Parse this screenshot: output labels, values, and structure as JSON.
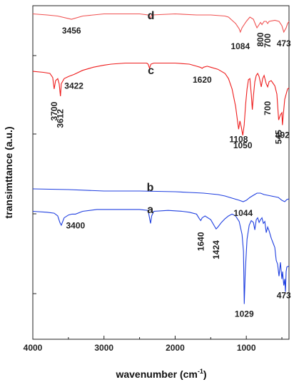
{
  "chart_data": {
    "type": "line",
    "xlabel": "wavenumber (cm",
    "xlabel_sup": "-1",
    "xlabel_tail": ")",
    "ylabel": "transimttance (a.u.)",
    "xlim": [
      4000,
      400
    ],
    "x_reversed": true,
    "x_ticks": [
      "4000",
      "3000",
      "2000",
      "1000"
    ],
    "grid": false,
    "y_tick_labels": false,
    "series": [
      {
        "name": "d",
        "color": "#f05050",
        "points": [
          [
            4000,
            17
          ],
          [
            3800,
            16
          ],
          [
            3650,
            15
          ],
          [
            3456,
            12
          ],
          [
            3300,
            15
          ],
          [
            3000,
            17
          ],
          [
            2900,
            17
          ],
          [
            2500,
            17
          ],
          [
            2380,
            16
          ],
          [
            2350,
            13
          ],
          [
            2330,
            16
          ],
          [
            2000,
            17
          ],
          [
            1700,
            16
          ],
          [
            1500,
            16
          ],
          [
            1300,
            15
          ],
          [
            1250,
            14
          ],
          [
            1200,
            11
          ],
          [
            1150,
            8
          ],
          [
            1100,
            3
          ],
          [
            1084,
            0
          ],
          [
            1060,
            4
          ],
          [
            1000,
            10
          ],
          [
            950,
            14
          ],
          [
            900,
            12
          ],
          [
            870,
            7
          ],
          [
            850,
            4
          ],
          [
            820,
            7
          ],
          [
            800,
            9
          ],
          [
            780,
            7
          ],
          [
            750,
            10
          ],
          [
            720,
            10
          ],
          [
            700,
            8
          ],
          [
            680,
            10
          ],
          [
            600,
            11
          ],
          [
            540,
            10
          ],
          [
            500,
            6
          ],
          [
            473,
            0
          ],
          [
            440,
            4
          ],
          [
            420,
            8
          ],
          [
            400,
            10
          ]
        ],
        "labels": [
          {
            "text": "3456",
            "x": 3456,
            "dy": 20
          },
          {
            "text": "1084",
            "x": 1084,
            "dy": 24
          },
          {
            "text": "800",
            "x": 800,
            "dy": 14,
            "rotate": true
          },
          {
            "text": "700",
            "x": 700,
            "dy": 14,
            "rotate": true
          },
          {
            "text": "473",
            "x": 473,
            "dy": 20
          }
        ]
      },
      {
        "name": "c",
        "color": "#ee1c1c",
        "points": [
          [
            4000,
            62
          ],
          [
            3850,
            61
          ],
          [
            3760,
            60
          ],
          [
            3720,
            56
          ],
          [
            3700,
            45
          ],
          [
            3680,
            53
          ],
          [
            3650,
            55
          ],
          [
            3630,
            50
          ],
          [
            3612,
            38
          ],
          [
            3600,
            50
          ],
          [
            3560,
            55
          ],
          [
            3500,
            57
          ],
          [
            3422,
            59
          ],
          [
            3300,
            63
          ],
          [
            3150,
            66
          ],
          [
            3000,
            68
          ],
          [
            2900,
            69
          ],
          [
            2700,
            70
          ],
          [
            2400,
            70
          ],
          [
            2380,
            69
          ],
          [
            2360,
            65
          ],
          [
            2340,
            69
          ],
          [
            2300,
            70
          ],
          [
            2000,
            70
          ],
          [
            1800,
            69
          ],
          [
            1700,
            67
          ],
          [
            1650,
            66
          ],
          [
            1620,
            65
          ],
          [
            1600,
            66
          ],
          [
            1550,
            67
          ],
          [
            1500,
            66
          ],
          [
            1400,
            64
          ],
          [
            1300,
            60
          ],
          [
            1250,
            55
          ],
          [
            1200,
            45
          ],
          [
            1150,
            28
          ],
          [
            1120,
            12
          ],
          [
            1108,
            6
          ],
          [
            1090,
            14
          ],
          [
            1070,
            8
          ],
          [
            1050,
            0
          ],
          [
            1030,
            10
          ],
          [
            1010,
            30
          ],
          [
            990,
            45
          ],
          [
            970,
            54
          ],
          [
            950,
            55
          ],
          [
            930,
            40
          ],
          [
            915,
            25
          ],
          [
            900,
            38
          ],
          [
            880,
            52
          ],
          [
            860,
            58
          ],
          [
            840,
            60
          ],
          [
            820,
            57
          ],
          [
            790,
            47
          ],
          [
            770,
            55
          ],
          [
            750,
            58
          ],
          [
            720,
            50
          ],
          [
            700,
            47
          ],
          [
            680,
            52
          ],
          [
            650,
            53
          ],
          [
            600,
            48
          ],
          [
            570,
            40
          ],
          [
            545,
            15
          ],
          [
            520,
            20
          ],
          [
            500,
            22
          ],
          [
            492,
            10
          ],
          [
            480,
            20
          ],
          [
            460,
            35
          ],
          [
            440,
            40
          ],
          [
            420,
            45
          ],
          [
            400,
            46
          ]
        ],
        "labels": [
          {
            "text": "3700",
            "x": 3700,
            "dy": 18,
            "rotate": true,
            "anchor": "end"
          },
          {
            "text": "3612",
            "x": 3612,
            "dy": 18,
            "rotate": true,
            "anchor": "end"
          },
          {
            "text": "3422",
            "x": 3422,
            "dy": 20
          },
          {
            "text": "1620",
            "x": 1620,
            "dy": 20
          },
          {
            "text": "1108",
            "x": 1108,
            "dy": 18
          },
          {
            "text": "700",
            "x": 700,
            "dy": 20,
            "rotate": true,
            "anchor": "end"
          },
          {
            "text": "1050",
            "x": 1050,
            "dy": 18
          },
          {
            "text": "545",
            "x": 545,
            "dy": 14,
            "rotate": true,
            "anchor": "end"
          },
          {
            "text": "492",
            "x": 492,
            "dy": 18
          }
        ]
      },
      {
        "name": "b",
        "color": "#1f3fe0",
        "points": [
          [
            4000,
            0
          ],
          [
            3500,
            -1
          ],
          [
            3000,
            -3
          ],
          [
            2500,
            -3
          ],
          [
            2000,
            -4
          ],
          [
            1800,
            -5
          ],
          [
            1600,
            -6
          ],
          [
            1400,
            -8
          ],
          [
            1300,
            -10
          ],
          [
            1200,
            -13
          ],
          [
            1100,
            -16
          ],
          [
            1044,
            -18
          ],
          [
            1000,
            -16
          ],
          [
            950,
            -12
          ],
          [
            900,
            -9
          ],
          [
            850,
            -6
          ],
          [
            800,
            -6
          ],
          [
            750,
            -8
          ],
          [
            700,
            -9
          ],
          [
            650,
            -10
          ],
          [
            600,
            -11
          ],
          [
            550,
            -12
          ],
          [
            500,
            -16
          ],
          [
            460,
            -18
          ],
          [
            430,
            -15
          ],
          [
            400,
            -14
          ]
        ],
        "labels": [
          {
            "text": "1044",
            "x": 1044,
            "dy": 20
          }
        ]
      },
      {
        "name": "a",
        "color": "#1f3fe0",
        "points": [
          [
            4000,
            45
          ],
          [
            3800,
            44
          ],
          [
            3700,
            43
          ],
          [
            3650,
            40
          ],
          [
            3620,
            33
          ],
          [
            3600,
            30
          ],
          [
            3560,
            38
          ],
          [
            3500,
            41
          ],
          [
            3450,
            42
          ],
          [
            3400,
            42
          ],
          [
            3300,
            45
          ],
          [
            3100,
            47
          ],
          [
            2950,
            47
          ],
          [
            2800,
            47
          ],
          [
            2500,
            47
          ],
          [
            2380,
            46
          ],
          [
            2365,
            40
          ],
          [
            2345,
            32
          ],
          [
            2330,
            40
          ],
          [
            2300,
            45
          ],
          [
            2100,
            46
          ],
          [
            1900,
            45
          ],
          [
            1800,
            44
          ],
          [
            1700,
            42
          ],
          [
            1660,
            37
          ],
          [
            1640,
            35
          ],
          [
            1620,
            38
          ],
          [
            1580,
            40
          ],
          [
            1500,
            36
          ],
          [
            1440,
            28
          ],
          [
            1424,
            26
          ],
          [
            1400,
            28
          ],
          [
            1350,
            33
          ],
          [
            1300,
            37
          ],
          [
            1250,
            40
          ],
          [
            1200,
            42
          ],
          [
            1150,
            40
          ],
          [
            1100,
            34
          ],
          [
            1060,
            20
          ],
          [
            1040,
            2
          ],
          [
            1029,
            -55
          ],
          [
            1015,
            -20
          ],
          [
            990,
            15
          ],
          [
            960,
            30
          ],
          [
            930,
            35
          ],
          [
            900,
            33
          ],
          [
            880,
            25
          ],
          [
            860,
            36
          ],
          [
            840,
            38
          ],
          [
            820,
            33
          ],
          [
            800,
            36
          ],
          [
            780,
            38
          ],
          [
            760,
            32
          ],
          [
            740,
            34
          ],
          [
            720,
            22
          ],
          [
            700,
            28
          ],
          [
            680,
            24
          ],
          [
            650,
            16
          ],
          [
            620,
            10
          ],
          [
            600,
            6
          ],
          [
            580,
            -8
          ],
          [
            560,
            -12
          ],
          [
            540,
            -25
          ],
          [
            520,
            -10
          ],
          [
            500,
            -28
          ],
          [
            490,
            -20
          ],
          [
            473,
            -35
          ],
          [
            460,
            -28
          ],
          [
            450,
            -42
          ],
          [
            440,
            -20
          ],
          [
            430,
            -15
          ],
          [
            400,
            -14
          ]
        ],
        "labels": [
          {
            "text": "3400",
            "x": 3400,
            "dy": 20
          },
          {
            "text": "1640",
            "x": 1640,
            "dy": 16,
            "rotate": true,
            "anchor": "end"
          },
          {
            "text": "1424",
            "x": 1424,
            "dy": 16,
            "rotate": true,
            "anchor": "end"
          },
          {
            "text": "1029",
            "x": 1029,
            "dy": 18
          },
          {
            "text": "473",
            "x": 473,
            "dy": 18
          }
        ]
      }
    ]
  }
}
